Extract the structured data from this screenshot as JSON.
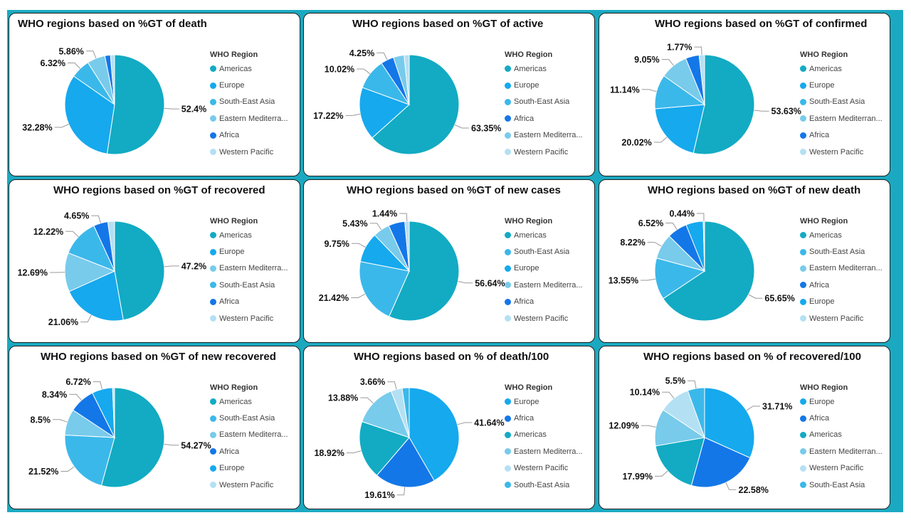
{
  "legend_title": "WHO Region",
  "colors": {
    "Americas": "#12abc3",
    "Europe": "#16a9ee",
    "South-East Asia": "#3bb8ea",
    "Eastern Mediterranean": "#78cbeb",
    "Africa": "#1477e8",
    "Western Pacific": "#b4e0f4",
    "background": "#1ba9c1"
  },
  "chart_data": [
    {
      "type": "pie",
      "title": "WHO regions based on %GT of death",
      "legend": [
        "Americas",
        "Europe",
        "South-East Asia",
        "Eastern Mediterra...",
        "Africa",
        "Western Pacific"
      ],
      "series": [
        {
          "values": [
            {
              "region": "Americas",
              "value": 52.4,
              "label": "52.4%"
            },
            {
              "region": "Europe",
              "value": 32.28,
              "label": "32.28%"
            },
            {
              "region": "South-East Asia",
              "value": 6.32,
              "label": "6.32%"
            },
            {
              "region": "Eastern Mediterranean",
              "value": 5.86,
              "label": "5.86%"
            },
            {
              "region": "Africa",
              "value": 1.8,
              "label": ""
            },
            {
              "region": "Western Pacific",
              "value": 1.34,
              "label": ""
            }
          ]
        }
      ]
    },
    {
      "type": "pie",
      "title": "WHO regions based on %GT of active",
      "legend": [
        "Americas",
        "Europe",
        "South-East Asia",
        "Africa",
        "Eastern Mediterra...",
        "Western Pacific"
      ],
      "series": [
        {
          "values": [
            {
              "region": "Americas",
              "value": 63.35,
              "label": "63.35%"
            },
            {
              "region": "Europe",
              "value": 17.22,
              "label": "17.22%"
            },
            {
              "region": "South-East Asia",
              "value": 10.02,
              "label": "10.02%"
            },
            {
              "region": "Africa",
              "value": 4.25,
              "label": "4.25%"
            },
            {
              "region": "Eastern Mediterranean",
              "value": 3.5,
              "label": ""
            },
            {
              "region": "Western Pacific",
              "value": 1.66,
              "label": ""
            }
          ]
        }
      ]
    },
    {
      "type": "pie",
      "title": "WHO regions based on %GT of confirmed",
      "legend": [
        "Americas",
        "Europe",
        "South-East Asia",
        "Eastern Mediterran...",
        "Africa",
        "Western Pacific"
      ],
      "series": [
        {
          "values": [
            {
              "region": "Americas",
              "value": 53.63,
              "label": "53.63%"
            },
            {
              "region": "Europe",
              "value": 20.02,
              "label": "20.02%"
            },
            {
              "region": "South-East Asia",
              "value": 11.14,
              "label": "11.14%"
            },
            {
              "region": "Eastern Mediterranean",
              "value": 9.05,
              "label": "9.05%"
            },
            {
              "region": "Africa",
              "value": 4.39,
              "label": ""
            },
            {
              "region": "Western Pacific",
              "value": 1.77,
              "label": "1.77%"
            }
          ]
        }
      ]
    },
    {
      "type": "pie",
      "title": "WHO regions based on %GT of recovered",
      "legend": [
        "Americas",
        "Europe",
        "Eastern Mediterra...",
        "South-East Asia",
        "Africa",
        "Western Pacific"
      ],
      "series": [
        {
          "values": [
            {
              "region": "Americas",
              "value": 47.2,
              "label": "47.2%"
            },
            {
              "region": "Europe",
              "value": 21.06,
              "label": "21.06%"
            },
            {
              "region": "Eastern Mediterranean",
              "value": 12.69,
              "label": "12.69%"
            },
            {
              "region": "South-East Asia",
              "value": 12.22,
              "label": "12.22%"
            },
            {
              "region": "Africa",
              "value": 4.65,
              "label": "4.65%"
            },
            {
              "region": "Western Pacific",
              "value": 2.18,
              "label": ""
            }
          ]
        }
      ]
    },
    {
      "type": "pie",
      "title": "WHO regions based on %GT of new cases",
      "legend": [
        "Americas",
        "South-East Asia",
        "Europe",
        "Eastern Mediterra...",
        "Africa",
        "Western Pacific"
      ],
      "series": [
        {
          "values": [
            {
              "region": "Americas",
              "value": 56.64,
              "label": "56.64%"
            },
            {
              "region": "South-East Asia",
              "value": 21.42,
              "label": "21.42%"
            },
            {
              "region": "Europe",
              "value": 9.75,
              "label": "9.75%"
            },
            {
              "region": "Eastern Mediterranean",
              "value": 5.43,
              "label": "5.43%"
            },
            {
              "region": "Africa",
              "value": 5.32,
              "label": ""
            },
            {
              "region": "Western Pacific",
              "value": 1.44,
              "label": "1.44%"
            }
          ]
        }
      ]
    },
    {
      "type": "pie",
      "title": "WHO regions based on %GT of new death",
      "legend": [
        "Americas",
        "South-East Asia",
        "Eastern Mediterran...",
        "Africa",
        "Europe",
        "Western Pacific"
      ],
      "series": [
        {
          "values": [
            {
              "region": "Americas",
              "value": 65.65,
              "label": "65.65%"
            },
            {
              "region": "South-East Asia",
              "value": 13.55,
              "label": "13.55%"
            },
            {
              "region": "Eastern Mediterranean",
              "value": 8.22,
              "label": "8.22%"
            },
            {
              "region": "Africa",
              "value": 6.52,
              "label": "6.52%"
            },
            {
              "region": "Europe",
              "value": 5.62,
              "label": ""
            },
            {
              "region": "Western Pacific",
              "value": 0.44,
              "label": "0.44%"
            }
          ]
        }
      ]
    },
    {
      "type": "pie",
      "title": "WHO regions based on %GT of new recovered",
      "legend": [
        "Americas",
        "South-East Asia",
        "Eastern Mediterra...",
        "Africa",
        "Europe",
        "Western Pacific"
      ],
      "series": [
        {
          "values": [
            {
              "region": "Americas",
              "value": 54.27,
              "label": "54.27%"
            },
            {
              "region": "South-East Asia",
              "value": 21.52,
              "label": "21.52%"
            },
            {
              "region": "Eastern Mediterranean",
              "value": 8.5,
              "label": "8.5%"
            },
            {
              "region": "Africa",
              "value": 8.34,
              "label": "8.34%"
            },
            {
              "region": "Europe",
              "value": 6.72,
              "label": "6.72%"
            },
            {
              "region": "Western Pacific",
              "value": 0.65,
              "label": ""
            }
          ]
        }
      ]
    },
    {
      "type": "pie",
      "title": "WHO regions based on % of death/100",
      "legend": [
        "Europe",
        "Africa",
        "Americas",
        "Eastern Mediterra...",
        "Western Pacific",
        "South-East Asia"
      ],
      "series": [
        {
          "values": [
            {
              "region": "Europe",
              "value": 41.64,
              "label": "41.64%"
            },
            {
              "region": "Africa",
              "value": 19.61,
              "label": "19.61%"
            },
            {
              "region": "Americas",
              "value": 18.92,
              "label": "18.92%"
            },
            {
              "region": "Eastern Mediterranean",
              "value": 13.88,
              "label": "13.88%"
            },
            {
              "region": "Western Pacific",
              "value": 3.66,
              "label": "3.66%"
            },
            {
              "region": "South-East Asia",
              "value": 2.29,
              "label": ""
            }
          ]
        }
      ]
    },
    {
      "type": "pie",
      "title": "WHO regions based on % of recovered/100",
      "legend": [
        "Europe",
        "Africa",
        "Americas",
        "Eastern Mediterran...",
        "Western Pacific",
        "South-East Asia"
      ],
      "series": [
        {
          "values": [
            {
              "region": "Europe",
              "value": 31.71,
              "label": "31.71%"
            },
            {
              "region": "Africa",
              "value": 22.58,
              "label": "22.58%"
            },
            {
              "region": "Americas",
              "value": 17.99,
              "label": "17.99%"
            },
            {
              "region": "Eastern Mediterranean",
              "value": 12.09,
              "label": "12.09%"
            },
            {
              "region": "Western Pacific",
              "value": 10.14,
              "label": "10.14%"
            },
            {
              "region": "South-East Asia",
              "value": 5.5,
              "label": "5.5%"
            }
          ]
        }
      ]
    }
  ]
}
